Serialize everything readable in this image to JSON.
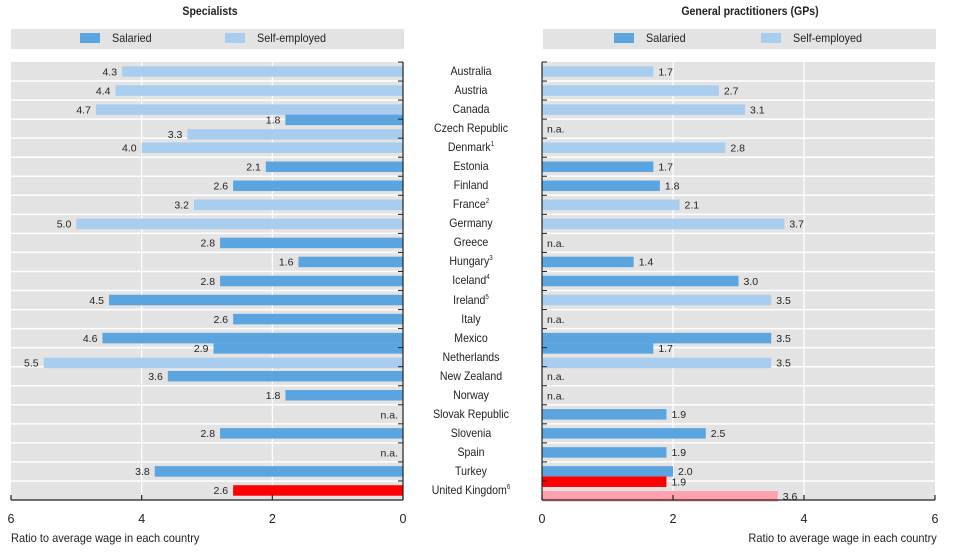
{
  "chart_data": [
    {
      "type": "bar",
      "orientation": "horizontal",
      "direction": "right-to-left",
      "title": "Specialists",
      "xlabel": "Ratio to average wage in each country",
      "xlim": [
        0,
        6
      ],
      "xticks": [
        "0",
        "2",
        "4",
        "6"
      ],
      "grid": true,
      "legend": [
        "Salaried",
        "Self-employed"
      ],
      "legend_position": "top",
      "categories": [
        "Australia",
        "Austria",
        "Canada",
        "Czech Republic",
        "Denmark",
        "Estonia",
        "Finland",
        "France",
        "Germany",
        "Greece",
        "Hungary",
        "Iceland",
        "Ireland",
        "Italy",
        "Mexico",
        "Netherlands",
        "New Zealand",
        "Norway",
        "Slovak Republic",
        "Slovenia",
        "Spain",
        "Turkey",
        "United Kingdom"
      ],
      "series": [
        {
          "name": "Salaried",
          "values": [
            null,
            null,
            null,
            1.8,
            null,
            2.1,
            2.6,
            null,
            null,
            2.8,
            1.6,
            2.8,
            4.5,
            2.6,
            4.6,
            2.9,
            3.6,
            1.8,
            null,
            2.8,
            null,
            3.8,
            2.6
          ]
        },
        {
          "name": "Self-employed",
          "values": [
            4.3,
            4.4,
            4.7,
            3.3,
            4.0,
            null,
            null,
            3.2,
            5.0,
            null,
            null,
            null,
            null,
            null,
            null,
            5.5,
            null,
            null,
            null,
            null,
            null,
            null,
            null
          ]
        }
      ],
      "na": [
        "Slovak Republic",
        "Spain"
      ],
      "highlight": "United Kingdom"
    },
    {
      "type": "bar",
      "orientation": "horizontal",
      "direction": "left-to-right",
      "title": "General practitioners (GPs)",
      "xlabel": "Ratio to average wage in each country",
      "xlim": [
        0,
        6
      ],
      "xticks": [
        "0",
        "2",
        "4",
        "6"
      ],
      "grid": true,
      "legend": [
        "Salaried",
        "Self-employed"
      ],
      "legend_position": "top",
      "categories": [
        "Australia",
        "Austria",
        "Canada",
        "Czech Republic",
        "Denmark",
        "Estonia",
        "Finland",
        "France",
        "Germany",
        "Greece",
        "Hungary",
        "Iceland",
        "Ireland",
        "Italy",
        "Mexico",
        "Netherlands",
        "New Zealand",
        "Norway",
        "Slovak Republic",
        "Slovenia",
        "Spain",
        "Turkey",
        "United Kingdom"
      ],
      "series": [
        {
          "name": "Salaried",
          "values": [
            null,
            null,
            null,
            null,
            null,
            1.7,
            1.8,
            null,
            null,
            null,
            1.4,
            3.0,
            null,
            null,
            3.5,
            1.7,
            null,
            null,
            1.9,
            2.5,
            1.9,
            2.0,
            1.9
          ]
        },
        {
          "name": "Self-employed",
          "values": [
            1.7,
            2.7,
            3.1,
            null,
            2.8,
            null,
            null,
            2.1,
            3.7,
            null,
            null,
            null,
            3.5,
            null,
            null,
            3.5,
            null,
            null,
            null,
            null,
            null,
            null,
            3.6
          ]
        }
      ],
      "na": [
        "Czech Republic",
        "Greece",
        "Italy",
        "New Zealand",
        "Norway"
      ],
      "highlight": "United Kingdom"
    }
  ],
  "countries": [
    {
      "name": "Australia",
      "note": ""
    },
    {
      "name": "Austria",
      "note": ""
    },
    {
      "name": "Canada",
      "note": ""
    },
    {
      "name": "Czech Republic",
      "note": ""
    },
    {
      "name": "Denmark",
      "note": "1"
    },
    {
      "name": "Estonia",
      "note": ""
    },
    {
      "name": "Finland",
      "note": ""
    },
    {
      "name": "France",
      "note": "2"
    },
    {
      "name": "Germany",
      "note": ""
    },
    {
      "name": "Greece",
      "note": ""
    },
    {
      "name": "Hungary",
      "note": "3"
    },
    {
      "name": "Iceland",
      "note": "4"
    },
    {
      "name": "Ireland",
      "note": "5"
    },
    {
      "name": "Italy",
      "note": ""
    },
    {
      "name": "Mexico",
      "note": ""
    },
    {
      "name": "Netherlands",
      "note": ""
    },
    {
      "name": "New Zealand",
      "note": ""
    },
    {
      "name": "Norway",
      "note": ""
    },
    {
      "name": "Slovak Republic",
      "note": ""
    },
    {
      "name": "Slovenia",
      "note": ""
    },
    {
      "name": "Spain",
      "note": ""
    },
    {
      "name": "Turkey",
      "note": ""
    },
    {
      "name": "United Kingdom",
      "note": "6"
    }
  ],
  "na_label": "n.a.",
  "colors": {
    "salaried": "#5aa5df",
    "self_employed": "#a9cdef",
    "highlight_salaried": "#ff0000",
    "highlight_self_employed": "#ffa0ae",
    "plot_bg": "#e3e3e3",
    "grid": "#ffffff"
  }
}
